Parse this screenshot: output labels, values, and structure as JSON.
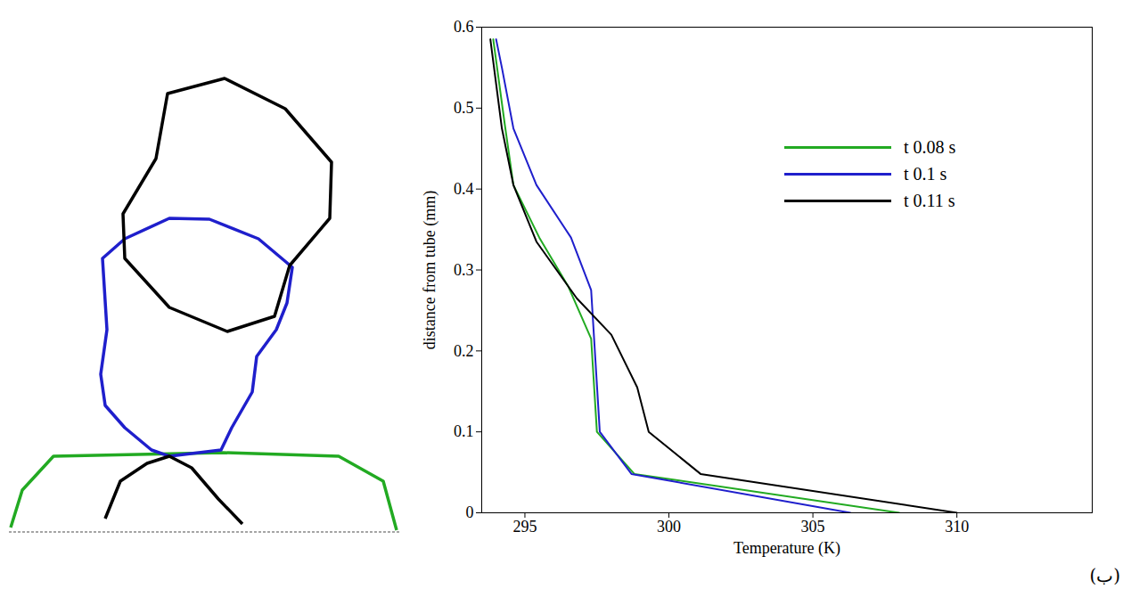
{
  "chart_data": {
    "type": "line",
    "x_label": "Temperature (K)",
    "y_label": "distance from tube (mm)",
    "annotation": "(ب)",
    "xlim": [
      293.5,
      314.7
    ],
    "xticks": [
      295,
      300,
      305,
      310
    ],
    "ylim": [
      0,
      0.6
    ],
    "yticks": [
      0,
      0.1,
      0.2,
      0.3,
      0.4,
      0.5,
      0.6
    ],
    "grid": false,
    "legend": "upper right",
    "series": [
      {
        "name": "t 0.08 s",
        "color": "#22aa22",
        "x": [
          293.9,
          294.3,
          294.6,
          295.5,
          296.5,
          297.3,
          297.5,
          298.8,
          308.0
        ],
        "values": [
          0.585,
          0.48,
          0.405,
          0.34,
          0.28,
          0.215,
          0.1,
          0.048,
          0
        ]
      },
      {
        "name": "t 0.1 s",
        "color": "#1f1fcc",
        "x": [
          294.0,
          294.2,
          294.6,
          295.4,
          296.6,
          297.3,
          297.6,
          298.7,
          306.3
        ],
        "values": [
          0.585,
          0.55,
          0.475,
          0.405,
          0.34,
          0.275,
          0.1,
          0.048,
          0
        ]
      },
      {
        "name": "t 0.11 s",
        "color": "#000000",
        "x": [
          293.8,
          294.2,
          294.6,
          295.4,
          296.8,
          298.0,
          298.9,
          299.3,
          301.1,
          310.0
        ],
        "values": [
          0.585,
          0.475,
          0.405,
          0.335,
          0.265,
          0.22,
          0.155,
          0.1,
          0.048,
          0
        ]
      }
    ]
  }
}
